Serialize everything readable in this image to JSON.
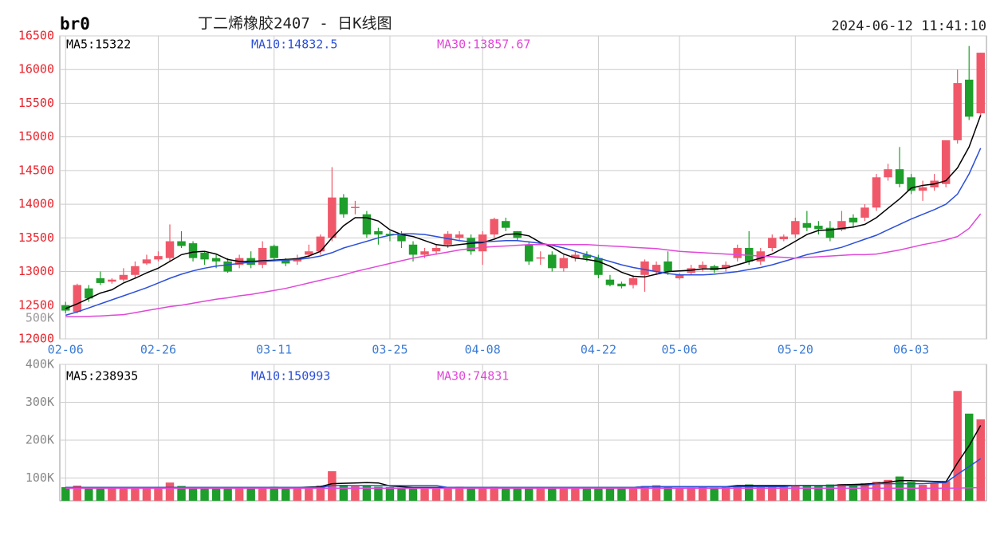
{
  "header": {
    "symbol": "br0",
    "title": "丁二烯橡胶2407 - 日K线图",
    "timestamp": "2024-06-12 11:41:10",
    "overlay_label": "500K"
  },
  "chart_data": [
    {
      "type": "candlestick",
      "categories": [
        "02-06",
        null,
        null,
        null,
        null,
        null,
        null,
        null,
        "02-26",
        null,
        null,
        null,
        null,
        null,
        null,
        null,
        null,
        null,
        "03-11",
        null,
        null,
        null,
        null,
        null,
        null,
        null,
        null,
        null,
        "03-25",
        null,
        null,
        null,
        null,
        null,
        null,
        null,
        "04-08",
        null,
        null,
        null,
        null,
        null,
        null,
        null,
        null,
        null,
        "04-22",
        null,
        null,
        null,
        null,
        null,
        null,
        "05-06",
        null,
        null,
        null,
        null,
        null,
        null,
        null,
        null,
        null,
        "05-20",
        null,
        null,
        null,
        null,
        null,
        null,
        null,
        null,
        null,
        "06-03",
        null,
        null,
        null,
        null,
        null,
        null
      ],
      "open": [
        12500,
        12400,
        12750,
        12900,
        12850,
        12880,
        12950,
        13120,
        13180,
        13200,
        13450,
        13420,
        13280,
        13200,
        13150,
        13100,
        13200,
        13100,
        13380,
        13180,
        13150,
        13250,
        13300,
        13500,
        14100,
        13950,
        13850,
        13600,
        13560,
        13550,
        13400,
        13250,
        13300,
        13400,
        13500,
        13500,
        13300,
        13550,
        13750,
        13600,
        13400,
        13200,
        13250,
        13050,
        13200,
        13250,
        13200,
        12880,
        12820,
        12800,
        12950,
        13000,
        13150,
        12900,
        12980,
        13050,
        13080,
        13050,
        13200,
        13350,
        13150,
        13350,
        13480,
        13550,
        13720,
        13680,
        13650,
        13620,
        13800,
        13800,
        13950,
        14400,
        14520,
        14400,
        14200,
        14250,
        14300,
        14950,
        15850,
        15350
      ],
      "high": [
        12550,
        12820,
        12800,
        13000,
        12900,
        13050,
        13150,
        13250,
        13300,
        13700,
        13600,
        13450,
        13300,
        13250,
        13200,
        13250,
        13300,
        13450,
        13400,
        13200,
        13250,
        13400,
        13550,
        14550,
        14150,
        14050,
        13900,
        13650,
        13600,
        13600,
        13450,
        13350,
        13400,
        13600,
        13600,
        13550,
        13600,
        13800,
        13800,
        13600,
        13450,
        13300,
        13300,
        13250,
        13300,
        13300,
        13250,
        12950,
        12850,
        12950,
        13180,
        13150,
        13300,
        12980,
        13100,
        13150,
        13100,
        13150,
        13400,
        13600,
        13350,
        13550,
        13550,
        13800,
        13900,
        13750,
        13750,
        13900,
        13850,
        14000,
        14450,
        14600,
        14850,
        14450,
        14350,
        14450,
        14950,
        16000,
        16350,
        16250
      ],
      "low": [
        12380,
        12380,
        12550,
        12800,
        12820,
        12850,
        12900,
        13100,
        13150,
        13150,
        13350,
        13150,
        13100,
        13050,
        12980,
        13050,
        13050,
        13050,
        13150,
        13080,
        13100,
        13200,
        13250,
        13450,
        13800,
        13850,
        13500,
        13400,
        13450,
        13350,
        13150,
        13200,
        13250,
        13350,
        13450,
        13250,
        13100,
        13500,
        13600,
        13450,
        13100,
        13100,
        13000,
        13000,
        13150,
        13150,
        12900,
        12780,
        12750,
        12750,
        12700,
        12950,
        12950,
        12880,
        12950,
        13000,
        12980,
        13000,
        13150,
        13100,
        13100,
        13300,
        13450,
        13500,
        13600,
        13550,
        13450,
        13600,
        13650,
        13750,
        13900,
        14350,
        14250,
        14150,
        14050,
        14200,
        14250,
        14900,
        15250,
        15300
      ],
      "close": [
        12420,
        12800,
        12600,
        12830,
        12880,
        12950,
        13080,
        13180,
        13230,
        13450,
        13380,
        13200,
        13180,
        13150,
        13000,
        13200,
        13100,
        13350,
        13200,
        13120,
        13200,
        13300,
        13520,
        14100,
        13850,
        13960,
        13550,
        13550,
        13540,
        13450,
        13250,
        13300,
        13350,
        13560,
        13550,
        13300,
        13550,
        13780,
        13650,
        13500,
        13150,
        13210,
        13050,
        13200,
        13250,
        13200,
        12950,
        12800,
        12780,
        12900,
        13150,
        13100,
        13000,
        12950,
        13050,
        13100,
        13020,
        13100,
        13350,
        13150,
        13300,
        13500,
        13520,
        13750,
        13650,
        13630,
        13500,
        13750,
        13730,
        13950,
        14400,
        14520,
        14300,
        14200,
        14250,
        14350,
        14950,
        15800,
        15300,
        16250
      ],
      "up_color": "#f0586a",
      "down_color": "#1e9e2a",
      "ylim": [
        12000,
        16500
      ],
      "yticks": [
        12000,
        12500,
        13000,
        13500,
        14000,
        14500,
        15000,
        15500,
        16000,
        16500
      ],
      "grid": true,
      "series": [
        {
          "name": "MA5:15322",
          "color": "#000000",
          "values": [
            12450,
            12520,
            12600,
            12680,
            12730,
            12830,
            12900,
            12980,
            13050,
            13150,
            13250,
            13290,
            13300,
            13260,
            13180,
            13150,
            13150,
            13160,
            13170,
            13180,
            13190,
            13230,
            13300,
            13500,
            13680,
            13800,
            13800,
            13750,
            13620,
            13550,
            13520,
            13460,
            13400,
            13380,
            13400,
            13420,
            13430,
            13480,
            13550,
            13560,
            13530,
            13430,
            13360,
            13260,
            13200,
            13180,
            13150,
            13080,
            12990,
            12930,
            12920,
            12960,
            13000,
            13010,
            13020,
            13040,
            13040,
            13050,
            13100,
            13150,
            13200,
            13260,
            13350,
            13450,
            13550,
            13610,
            13620,
            13640,
            13660,
            13700,
            13800,
            13940,
            14080,
            14240,
            14280,
            14300,
            14350,
            14540,
            14850,
            15322
          ]
        },
        {
          "name": "MA10:14832.5",
          "color": "#2c4fd8",
          "values": [
            12350,
            12400,
            12460,
            12520,
            12580,
            12640,
            12700,
            12760,
            12830,
            12900,
            12960,
            13010,
            13050,
            13080,
            13100,
            13120,
            13140,
            13150,
            13160,
            13170,
            13180,
            13200,
            13230,
            13280,
            13350,
            13400,
            13450,
            13500,
            13540,
            13560,
            13560,
            13550,
            13520,
            13490,
            13460,
            13440,
            13440,
            13450,
            13460,
            13460,
            13440,
            13420,
            13390,
            13350,
            13300,
            13250,
            13200,
            13150,
            13100,
            13060,
            13030,
            13000,
            12970,
            12950,
            12950,
            12950,
            12960,
            12980,
            13000,
            13030,
            13060,
            13100,
            13150,
            13200,
            13250,
            13290,
            13320,
            13360,
            13420,
            13480,
            13540,
            13620,
            13700,
            13780,
            13850,
            13920,
            14000,
            14150,
            14450,
            14832.5
          ]
        },
        {
          "name": "MA30:13857.67",
          "color": "#e048d8",
          "values": [
            12330,
            12330,
            12335,
            12340,
            12350,
            12360,
            12390,
            12420,
            12450,
            12480,
            12500,
            12530,
            12560,
            12590,
            12610,
            12640,
            12660,
            12690,
            12720,
            12750,
            12790,
            12830,
            12870,
            12910,
            12950,
            13000,
            13040,
            13080,
            13120,
            13160,
            13200,
            13230,
            13260,
            13290,
            13320,
            13340,
            13360,
            13370,
            13380,
            13390,
            13400,
            13400,
            13400,
            13400,
            13400,
            13400,
            13390,
            13380,
            13370,
            13360,
            13350,
            13340,
            13320,
            13300,
            13290,
            13280,
            13270,
            13260,
            13250,
            13240,
            13230,
            13220,
            13210,
            13200,
            13210,
            13220,
            13230,
            13240,
            13250,
            13250,
            13260,
            13290,
            13320,
            13360,
            13400,
            13430,
            13470,
            13520,
            13640,
            13857.67
          ]
        }
      ]
    },
    {
      "type": "volume",
      "values": [
        76000,
        80000,
        74000,
        73000,
        74000,
        75000,
        74000,
        73000,
        76000,
        88000,
        79000,
        76000,
        75000,
        75000,
        74000,
        74000,
        75000,
        74000,
        77000,
        75000,
        74000,
        76000,
        80000,
        118000,
        82000,
        78000,
        79000,
        77000,
        76000,
        75000,
        74000,
        75000,
        74000,
        75000,
        77000,
        74000,
        76000,
        77000,
        76000,
        75000,
        74000,
        74000,
        75000,
        74000,
        73000,
        74000,
        75000,
        74000,
        73000,
        75000,
        79000,
        81000,
        78000,
        73000,
        75000,
        76000,
        75000,
        77000,
        80000,
        83000,
        78000,
        79000,
        80000,
        81000,
        82000,
        80000,
        83000,
        84000,
        82000,
        86000,
        90000,
        95000,
        104000,
        90000,
        82000,
        86000,
        92000,
        330000,
        270000,
        255000
      ],
      "ylim": [
        40000,
        400000
      ],
      "yticks": [
        {
          "value": 100000,
          "label": "100K"
        },
        {
          "value": 200000,
          "label": "200K"
        },
        {
          "value": 300000,
          "label": "300K"
        },
        {
          "value": 400000,
          "label": "400K"
        }
      ],
      "grid": true,
      "series": [
        {
          "name": "MA5:238935",
          "color": "#000000",
          "values": [
            75000,
            75000,
            75000,
            75000,
            75000,
            75000,
            75000,
            75000,
            75000,
            75000,
            75000,
            75000,
            75000,
            75000,
            75000,
            75000,
            75000,
            75000,
            75000,
            75000,
            75000,
            76000,
            77000,
            85000,
            86000,
            87000,
            88000,
            87000,
            79000,
            77000,
            75000,
            75000,
            75000,
            75000,
            75000,
            75000,
            75000,
            75000,
            75000,
            75000,
            75000,
            75000,
            75000,
            75000,
            75000,
            75000,
            75000,
            75000,
            75000,
            75000,
            77000,
            77000,
            77000,
            77000,
            77000,
            77000,
            77000,
            77000,
            80000,
            80000,
            80000,
            80000,
            80000,
            80000,
            80000,
            80000,
            80000,
            82000,
            83000,
            84000,
            86000,
            89000,
            93000,
            93000,
            92000,
            91000,
            90000,
            140000,
            185000,
            238935
          ]
        },
        {
          "name": "MA10:150993",
          "color": "#2c4fd8",
          "values": [
            75000,
            75000,
            75000,
            75000,
            75000,
            75000,
            75000,
            75000,
            75000,
            75000,
            75000,
            75000,
            75000,
            75000,
            75000,
            75000,
            75000,
            75000,
            75000,
            75000,
            75000,
            75000,
            75000,
            80000,
            80000,
            80000,
            80000,
            80000,
            80000,
            80000,
            80000,
            80000,
            80000,
            75000,
            75000,
            75000,
            75000,
            75000,
            75000,
            75000,
            75000,
            75000,
            75000,
            75000,
            75000,
            75000,
            75000,
            75000,
            75000,
            75000,
            77000,
            77000,
            77000,
            77000,
            77000,
            77000,
            77000,
            77000,
            77000,
            77000,
            77000,
            77000,
            77000,
            80000,
            80000,
            80000,
            80000,
            80000,
            80000,
            80000,
            85000,
            85000,
            85000,
            85000,
            85000,
            87000,
            88000,
            110000,
            130000,
            150993
          ]
        },
        {
          "name": "MA30:74831",
          "color": "#e048d8",
          "values": [
            73000,
            73000,
            73000,
            73000,
            73000,
            73000,
            73000,
            73000,
            73000,
            73000,
            73000,
            73000,
            73000,
            73000,
            73000,
            73000,
            73000,
            73000,
            73000,
            73000,
            73000,
            73000,
            73000,
            73000,
            73000,
            73000,
            73000,
            73000,
            73000,
            73000,
            73000,
            73000,
            73000,
            73000,
            73000,
            73000,
            73000,
            73000,
            73000,
            73000,
            73000,
            73000,
            73000,
            73000,
            73000,
            73000,
            73000,
            73000,
            73000,
            73000,
            73000,
            73000,
            73000,
            73000,
            73000,
            73000,
            73000,
            73000,
            73000,
            73000,
            73000,
            73000,
            73000,
            73000,
            73000,
            73000,
            73000,
            73000,
            73000,
            73000,
            73000,
            73000,
            73000,
            73000,
            73000,
            73000,
            73000,
            73500,
            74000,
            74831
          ]
        }
      ]
    }
  ]
}
